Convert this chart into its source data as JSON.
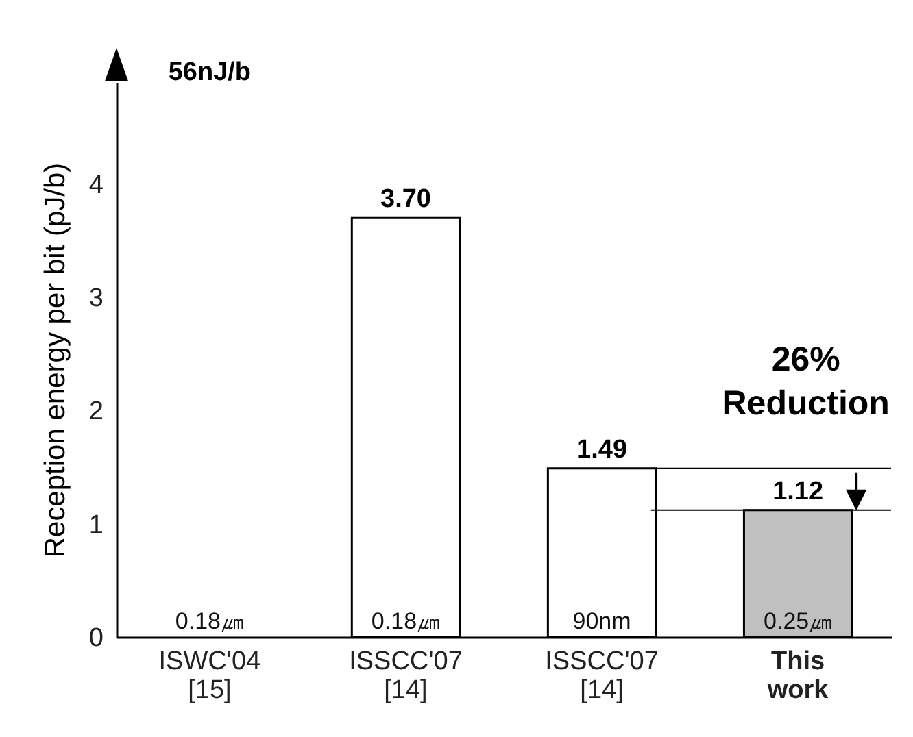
{
  "chart_data": {
    "type": "bar",
    "categories": [
      "ISWC'04\n[15]",
      "ISSCC'07\n[14]",
      "ISSCC'07\n[14]",
      "This\nwork"
    ],
    "values": [
      null,
      3.7,
      1.49,
      1.12
    ],
    "colors": [
      "#ffffff",
      "#ffffff",
      "#ffffff",
      "#c0c0c0"
    ],
    "value_labels": [
      "56nJ/b",
      "3.70",
      "1.49",
      "1.12"
    ],
    "ylabel": "Reception energy per bit (pJ/b)",
    "ylim": [
      0,
      4.9
    ],
    "yticks": [
      0,
      1,
      2,
      3,
      4
    ],
    "grid": false,
    "ref_lines": [
      {
        "axis": "y",
        "value": 1.49
      },
      {
        "axis": "y",
        "value": 1.12
      }
    ],
    "annotations": [
      "0.18㎛",
      "0.18㎛",
      "90nm",
      "0.25㎛",
      "26%\nReduction"
    ]
  }
}
